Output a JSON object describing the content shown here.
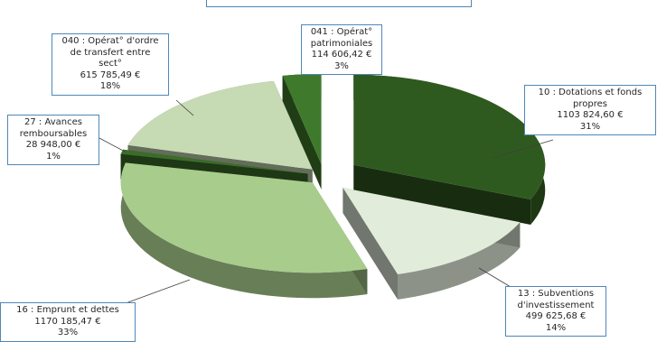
{
  "chart_data": {
    "type": "pie",
    "style": "3d-exploded",
    "colors": {
      "10": "#2f5a1f",
      "13": "#e2ecdb",
      "16": "#a8cc8c",
      "27": "#3b6d29",
      "040": "#c6dab4",
      "041": "#3f7a2c"
    },
    "slices": [
      {
        "id": "10",
        "label_lines": [
          "10 : Dotations et fonds",
          "propres"
        ],
        "value_text": "1103 824,60 €",
        "percent_text": "31%",
        "value": 1103824.6,
        "percent": 31
      },
      {
        "id": "13",
        "label_lines": [
          "13 : Subventions",
          "d'investissement"
        ],
        "value_text": "499 625,68 €",
        "percent_text": "14%",
        "value": 499625.68,
        "percent": 14
      },
      {
        "id": "16",
        "label_lines": [
          "16 : Emprunt et dettes"
        ],
        "value_text": "1170 185,47 €",
        "percent_text": "33%",
        "value": 1170185.47,
        "percent": 33
      },
      {
        "id": "27",
        "label_lines": [
          "27 : Avances",
          "remboursables"
        ],
        "value_text": "28 948,00 €",
        "percent_text": "1%",
        "value": 28948.0,
        "percent": 1
      },
      {
        "id": "040",
        "label_lines": [
          "040 : Opérat° d'ordre",
          "de transfert entre",
          "sect°"
        ],
        "value_text": "615 785,49 €",
        "percent_text": "18%",
        "value": 615785.49,
        "percent": 18
      },
      {
        "id": "041",
        "label_lines": [
          "041 : Opérat°",
          "patrimoniales"
        ],
        "value_text": "114 606,42 €",
        "percent_text": "3%",
        "value": 114606.42,
        "percent": 3
      }
    ]
  }
}
